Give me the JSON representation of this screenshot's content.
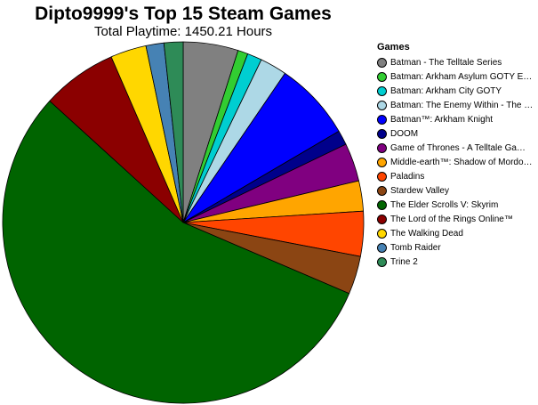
{
  "chart_data": {
    "type": "pie",
    "title": "Dipto9999's Top 15 Steam Games",
    "subtitle": "Total Playtime: 1450.21 Hours",
    "legend_title": "Games",
    "legend_position": "right",
    "slices": [
      {
        "label": "Batman - The Telltale Series",
        "value": 4.9,
        "color": "#808080"
      },
      {
        "label": "Batman: Arkham Asylum GOTY E…",
        "value": 0.9,
        "color": "#32cd32"
      },
      {
        "label": "Batman: Arkham City GOTY",
        "value": 1.3,
        "color": "#00ced1"
      },
      {
        "label": "Batman: The Enemy Within - The …",
        "value": 2.4,
        "color": "#add8e6"
      },
      {
        "label": "Batman™: Arkham Knight",
        "value": 7.0,
        "color": "#0000ff"
      },
      {
        "label": "DOOM",
        "value": 1.3,
        "color": "#00008b"
      },
      {
        "label": "Game of Thrones - A Telltale Ga…",
        "value": 3.4,
        "color": "#800080"
      },
      {
        "label": "Middle-earth™: Shadow of Mordo…",
        "value": 2.7,
        "color": "#ffa500"
      },
      {
        "label": "Paladins",
        "value": 4.0,
        "color": "#ff4500"
      },
      {
        "label": "Stardew Valley",
        "value": 3.4,
        "color": "#8b4513"
      },
      {
        "label": "The Elder Scrolls V: Skyrim",
        "value": 55.1,
        "color": "#006400"
      },
      {
        "label": "The Lord of the Rings Online™",
        "value": 6.7,
        "color": "#8b0000"
      },
      {
        "label": "The Walking Dead",
        "value": 3.2,
        "color": "#ffd700"
      },
      {
        "label": "Tomb Raider",
        "value": 1.6,
        "color": "#4682b4"
      },
      {
        "label": "Trine 2",
        "value": 1.7,
        "color": "#2e8b57"
      }
    ]
  }
}
